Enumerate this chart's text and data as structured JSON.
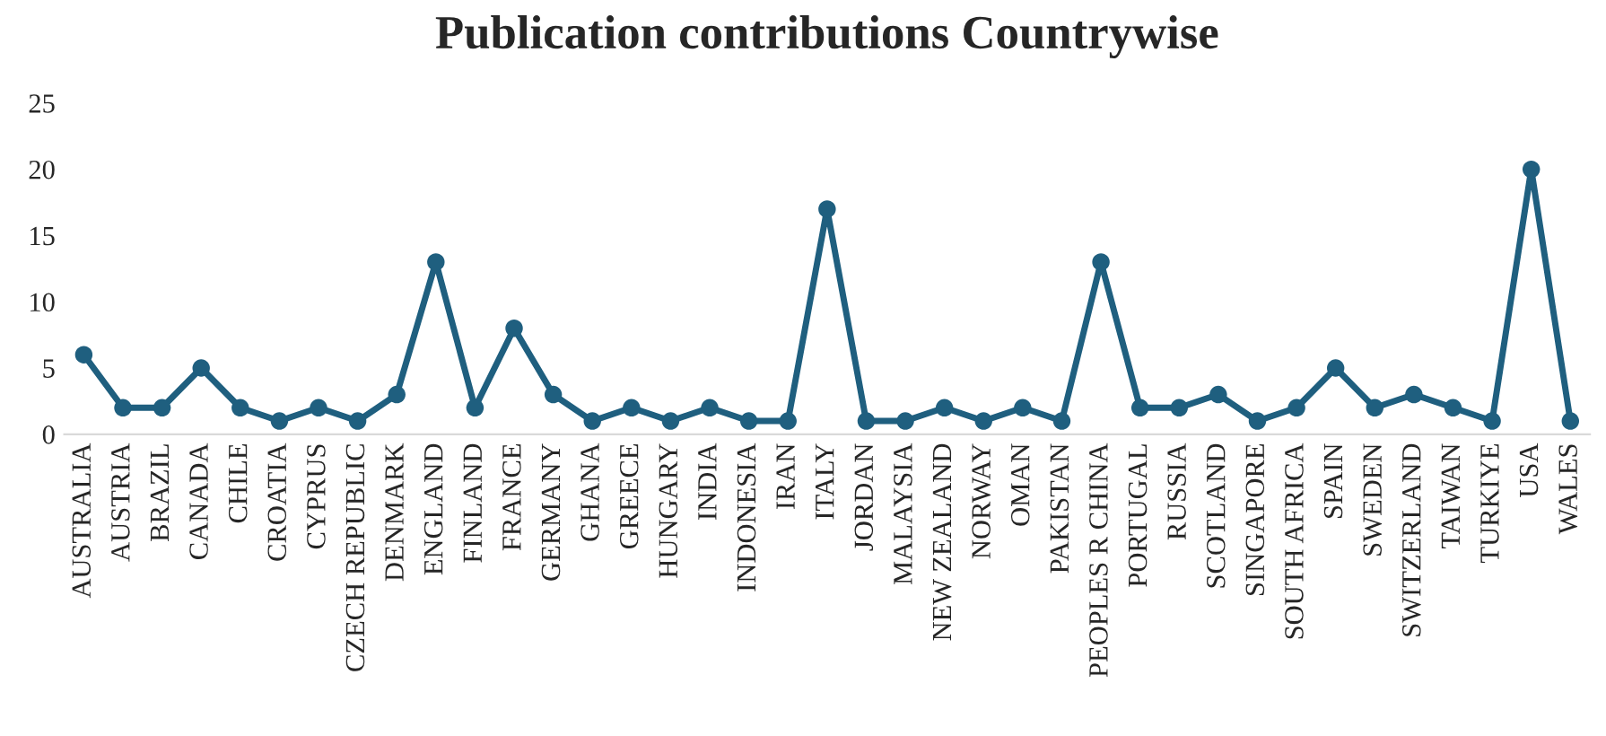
{
  "chart_data": {
    "type": "line",
    "title": "Publication contributions Countrywise",
    "categories": [
      "AUSTRALIA",
      "AUSTRIA",
      "BRAZIL",
      "CANADA",
      "CHILE",
      "CROATIA",
      "CYPRUS",
      "CZECH REPUBLIC",
      "DENMARK",
      "ENGLAND",
      "FINLAND",
      "FRANCE",
      "GERMANY",
      "GHANA",
      "GREECE",
      "HUNGARY",
      "INDIA",
      "INDONESIA",
      "IRAN",
      "ITALY",
      "JORDAN",
      "MALAYSIA",
      "NEW ZEALAND",
      "NORWAY",
      "OMAN",
      "PAKISTAN",
      "PEOPLES R CHINA",
      "PORTUGAL",
      "RUSSIA",
      "SCOTLAND",
      "SINGAPORE",
      "SOUTH AFRICA",
      "SPAIN",
      "SWEDEN",
      "SWITZERLAND",
      "TAIWAN",
      "TURKIYE",
      "USA",
      "WALES"
    ],
    "series": [
      {
        "color": "#1f5f7f",
        "values": [
          6,
          2,
          2,
          5,
          2,
          1,
          2,
          1,
          3,
          13,
          2,
          8,
          3,
          1,
          2,
          1,
          2,
          1,
          1,
          17,
          1,
          1,
          2,
          1,
          2,
          1,
          13,
          2,
          2,
          3,
          1,
          2,
          5,
          2,
          3,
          2,
          1,
          20,
          1
        ]
      }
    ],
    "ylim": [
      0,
      25
    ],
    "yticks": [
      0,
      5,
      10,
      15,
      20,
      25
    ],
    "grid": false,
    "legend": false,
    "marker": "circle",
    "line_style": "solid"
  }
}
